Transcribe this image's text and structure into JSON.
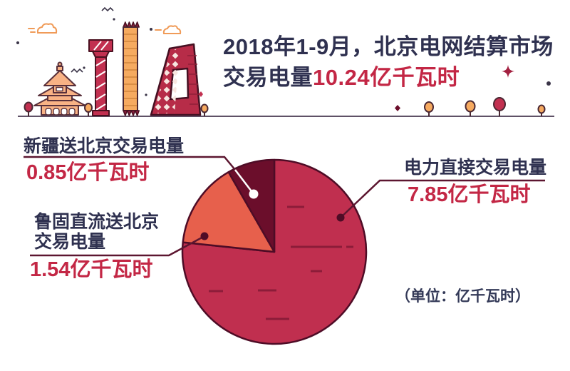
{
  "header": {
    "title_line1": "2018年1-9月，北京电网结算市场",
    "title_line2_prefix": "交易电量",
    "title_line2_value": "10.24亿千瓦时"
  },
  "labels": {
    "xinjiang": {
      "name": "新疆送北京交易电量",
      "value": "0.85亿千瓦时"
    },
    "lugu": {
      "name_line1": "鲁固直流送北京",
      "name_line2": "交易电量",
      "value": "1.54亿千瓦时"
    },
    "direct": {
      "name": "电力直接交易电量",
      "value": "7.85亿千瓦时"
    }
  },
  "unit_note": "（单位：亿千瓦时）",
  "colors": {
    "accent_red": "#C32745",
    "navy_text": "#2F3150",
    "pie_outline": "#4E0C26",
    "leader_line": "#5C1630",
    "dash": "#8C1C39",
    "ground_line": "#5F5166"
  },
  "chart_data": {
    "type": "pie",
    "title": "2018年1-9月北京电网结算市场交易电量",
    "total": 10.24,
    "unit": "亿千瓦时",
    "start_angle_deg": 0,
    "direction": "clockwise",
    "legend_position": "callout-labels",
    "series": [
      {
        "key": "direct",
        "name": "电力直接交易电量",
        "value": 7.85,
        "color": "#C02F4F"
      },
      {
        "key": "lugu",
        "name": "鲁固直流送北京交易电量",
        "value": 1.54,
        "color": "#E7604C"
      },
      {
        "key": "xinjiang",
        "name": "新疆送北京交易电量",
        "value": 0.85,
        "color": "#6B0E2B"
      }
    ]
  }
}
